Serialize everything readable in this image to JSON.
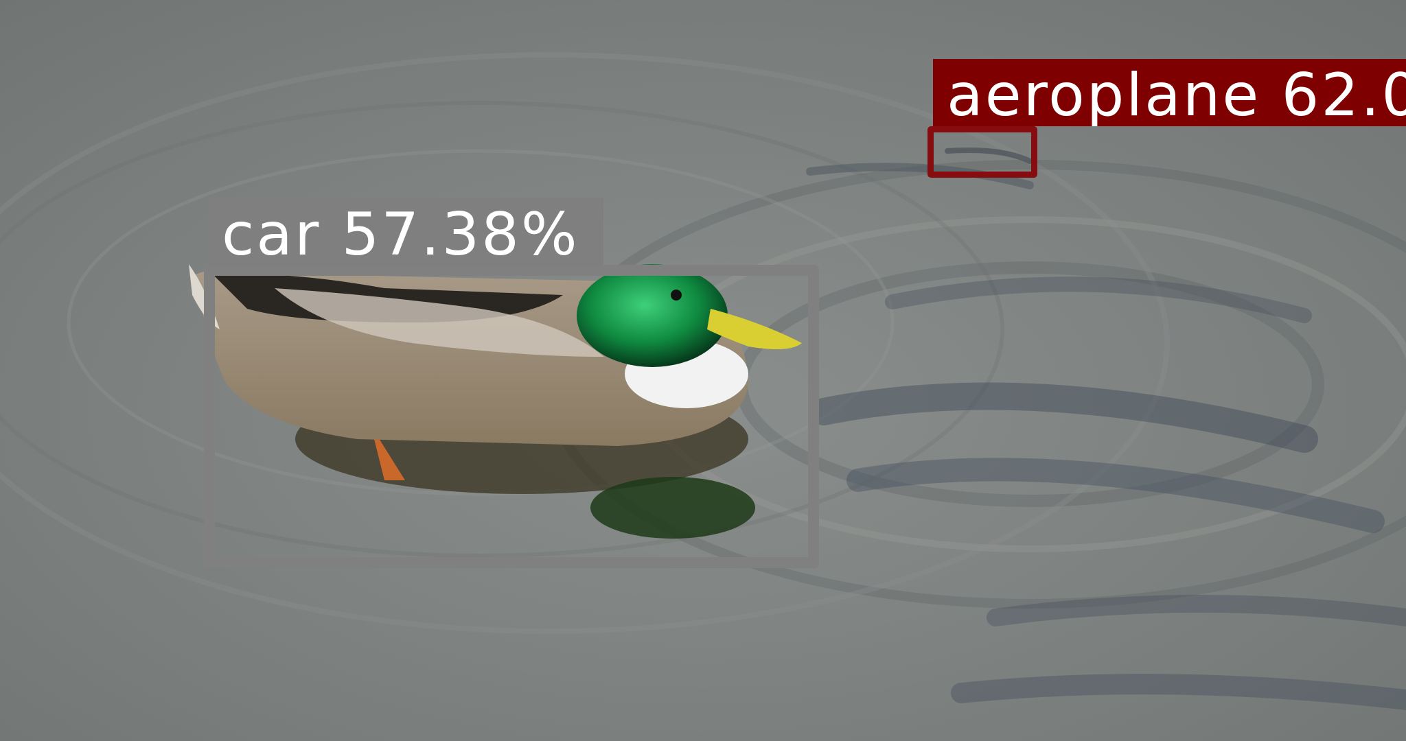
{
  "image": {
    "subject": "mallard duck swimming on rippled water"
  },
  "detections": [
    {
      "label": "aeroplane 62.0",
      "class_name": "aeroplane",
      "color": "#7f0000"
    },
    {
      "label": "car 57.38%",
      "class_name": "car",
      "color": "#808080"
    }
  ]
}
